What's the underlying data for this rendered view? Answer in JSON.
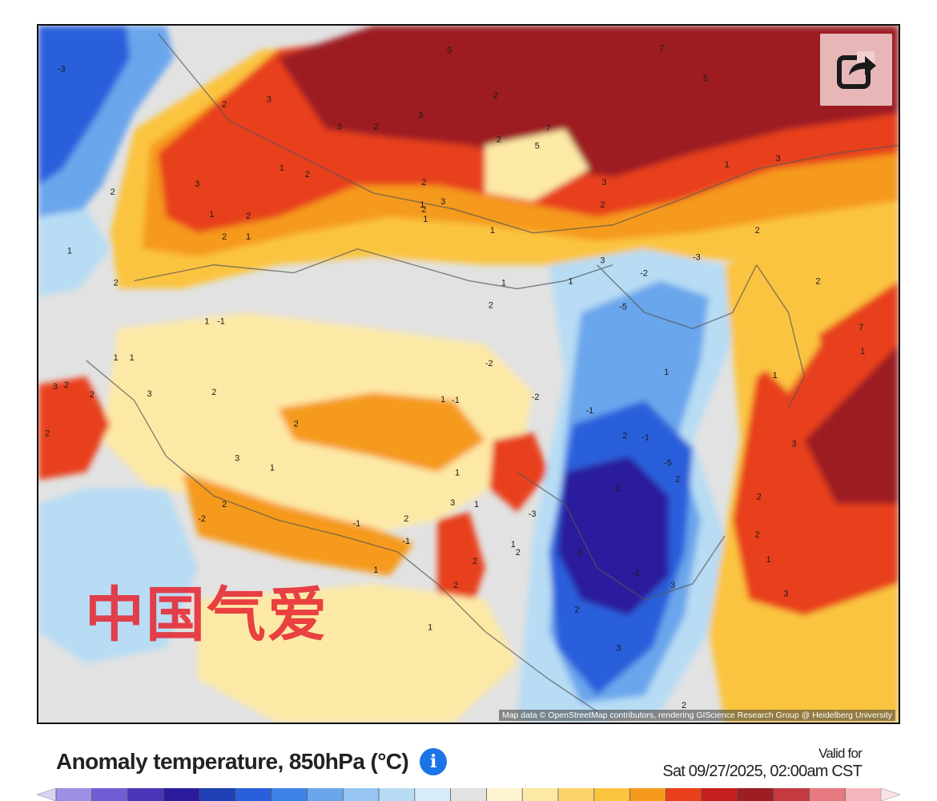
{
  "map": {
    "watermark": "中国气爱",
    "attribution": "Map data © OpenStreetMap contributors, rendering GIScience Research Group @ Heidelberg University",
    "share_icon": "share-arrow-icon",
    "contour_labels": [
      {
        "t": "-3"
      },
      {
        "t": "7"
      },
      {
        "t": "5"
      },
      {
        "t": "7"
      },
      {
        "t": "5"
      },
      {
        "t": "3"
      },
      {
        "t": "2"
      },
      {
        "t": "2"
      },
      {
        "t": "3"
      },
      {
        "t": "3"
      },
      {
        "t": "2"
      },
      {
        "t": "7"
      },
      {
        "t": "5"
      },
      {
        "t": "2"
      },
      {
        "t": "3"
      },
      {
        "t": "1"
      },
      {
        "t": "2"
      },
      {
        "t": "2"
      },
      {
        "t": "3"
      },
      {
        "t": "2"
      },
      {
        "t": "1"
      },
      {
        "t": "1"
      },
      {
        "t": "1"
      },
      {
        "t": "2"
      },
      {
        "t": "1"
      },
      {
        "t": "2"
      },
      {
        "t": "3"
      },
      {
        "t": "1"
      },
      {
        "t": "3"
      },
      {
        "t": "2"
      },
      {
        "t": "1"
      },
      {
        "t": "2"
      },
      {
        "t": "1"
      },
      {
        "t": "2"
      },
      {
        "t": "2"
      },
      {
        "t": "3"
      },
      {
        "t": "2"
      },
      {
        "t": "-1"
      },
      {
        "t": "1"
      },
      {
        "t": "1"
      },
      {
        "t": "1"
      },
      {
        "t": "2"
      },
      {
        "t": "1"
      },
      {
        "t": "2"
      },
      {
        "t": "1"
      },
      {
        "t": "3"
      },
      {
        "t": "2"
      },
      {
        "t": "3"
      },
      {
        "t": "2"
      },
      {
        "t": "2"
      },
      {
        "t": "2"
      },
      {
        "t": "1"
      },
      {
        "t": "-1"
      },
      {
        "t": "-2"
      },
      {
        "t": "-2"
      },
      {
        "t": "-3"
      },
      {
        "t": "-2"
      },
      {
        "t": "-1"
      },
      {
        "t": "2"
      },
      {
        "t": "-1"
      },
      {
        "t": "1"
      },
      {
        "t": "-5"
      },
      {
        "t": "-5"
      },
      {
        "t": "-3"
      },
      {
        "t": "-2"
      },
      {
        "t": "-3"
      },
      {
        "t": "-1"
      },
      {
        "t": "2"
      },
      {
        "t": "3"
      },
      {
        "t": "2"
      },
      {
        "t": "2"
      },
      {
        "t": "3"
      },
      {
        "t": "2"
      },
      {
        "t": "1"
      },
      {
        "t": "3"
      },
      {
        "t": "3"
      },
      {
        "t": "2"
      },
      {
        "t": "1"
      },
      {
        "t": "1"
      },
      {
        "t": "-1"
      },
      {
        "t": "2"
      },
      {
        "t": "1"
      },
      {
        "t": "2"
      },
      {
        "t": "3"
      },
      {
        "t": "2"
      },
      {
        "t": "1"
      },
      {
        "t": "-1"
      },
      {
        "t": "1"
      },
      {
        "t": "-2"
      },
      {
        "t": "3"
      },
      {
        "t": "2"
      },
      {
        "t": "1"
      },
      {
        "t": "1"
      },
      {
        "t": "7"
      },
      {
        "t": "1"
      },
      {
        "t": "2"
      }
    ]
  },
  "legend": {
    "title": "Anomaly temperature, 850hPa (°C)",
    "info_icon": "info-icon",
    "valid_label": "Valid for",
    "valid_time": "Sat 09/27/2025, 02:00am CST",
    "colors": {
      "strong_cold": "#2a1c9c",
      "cold": "#2a5fdc",
      "cool": "#6aa6ec",
      "slight_cool": "#b7dcf4",
      "neutral": "#e2e2e2",
      "slight_warm": "#fde9a6",
      "warm": "#fbc43f",
      "warmer": "#f59a1d",
      "hot": "#e8401a",
      "very_hot": "#c41e1e",
      "extreme": "#9c1e24"
    },
    "scale": [
      "#d9d4f3",
      "#9d8ee6",
      "#6f5ed6",
      "#4a36b8",
      "#2a1c9c",
      "#1f3fb4",
      "#2a5fdc",
      "#3f82e8",
      "#6aa6ec",
      "#95c5f0",
      "#b7dcf4",
      "#d7ecf8",
      "#e2e2e2",
      "#fdf3cf",
      "#fde9a6",
      "#fbd56a",
      "#fbc43f",
      "#f59a1d",
      "#e8401a",
      "#c41e1e",
      "#9c1e24",
      "#c43a3f",
      "#e77a80",
      "#f4b6bb",
      "#fbe1e3"
    ]
  }
}
